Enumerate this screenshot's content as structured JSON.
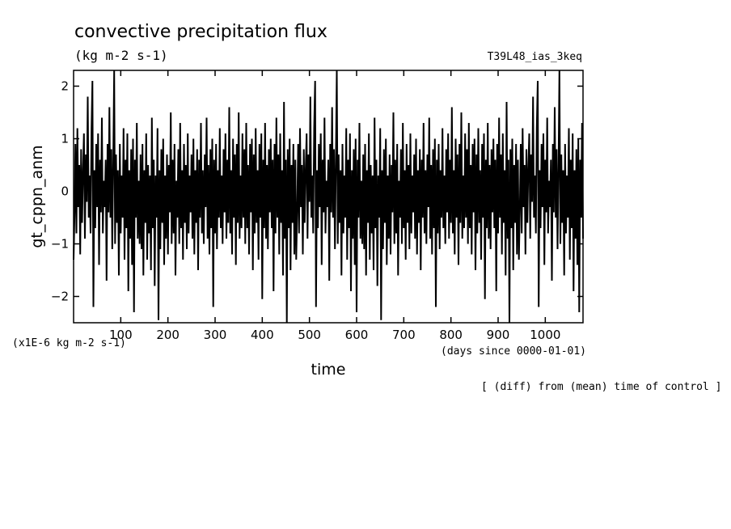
{
  "chart_data": {
    "type": "line",
    "title": "convective precipitation flux",
    "units": "(kg m-2 s-1)",
    "run_name": "T39L48_ias_3keq",
    "xlabel": "time",
    "x_unit_note": "(days since 0000-01-01)",
    "ylabel": "gt_cppn_anm",
    "y_scale_note": "(x1E-6 kg m-2 s-1)",
    "footnote": "[ (diff) from (mean) time of control ]",
    "xlim": [
      0,
      1080
    ],
    "ylim": [
      -2.5,
      2.3
    ],
    "x_ticks": [
      "100",
      "200",
      "300",
      "400",
      "500",
      "600",
      "700",
      "800",
      "900",
      "1000"
    ],
    "y_ticks": [
      "2",
      "1",
      "0",
      "−1",
      "−2"
    ],
    "grid": false,
    "legend": "none",
    "line_color": "#000000",
    "sample_interval_days": 2,
    "series": [
      {
        "values": [
          -1.3,
          -0.4,
          0.9,
          -0.8,
          1.2,
          -0.3,
          0.5,
          -1.2,
          0.8,
          -0.6,
          0.4,
          1.1,
          -0.9,
          0.7,
          -0.2,
          1.8,
          -0.5,
          0.3,
          -0.8,
          1.2,
          2.1,
          -2.2,
          0.4,
          -0.7,
          0.9,
          -0.3,
          1.1,
          -1.4,
          0.6,
          -0.4,
          1.4,
          -0.8,
          0.2,
          -0.3,
          0.6,
          -1.7,
          0.9,
          -0.4,
          1.6,
          -0.5,
          0.8,
          -1.1,
          0.5,
          2.3,
          -1.0,
          0.7,
          -0.6,
          0.4,
          -1.6,
          0.9,
          -0.8,
          0.3,
          -0.5,
          1.2,
          -1.3,
          0.6,
          -0.7,
          1.1,
          -1.9,
          0.4,
          -0.9,
          0.8,
          -1.4,
          1.0,
          -2.3,
          0.6,
          -0.5,
          1.3,
          -0.9,
          0.2,
          -1.0,
          0.7,
          -1.1,
          0.9,
          -1.6,
          0.4,
          -0.6,
          1.1,
          -1.3,
          0.5,
          -0.8,
          0.3,
          -1.5,
          1.4,
          -0.7,
          0.6,
          -1.8,
          0.3,
          -0.5,
          1.2,
          -2.45,
          0.4,
          -1.1,
          0.8,
          -0.6,
          1.0,
          -1.4,
          0.3,
          -0.9,
          0.7,
          -1.2,
          0.5,
          -0.4,
          1.5,
          -1.0,
          0.6,
          -0.8,
          0.9,
          -1.6,
          0.2,
          -0.5,
          0.8,
          -1.0,
          1.3,
          -0.7,
          0.4,
          -1.3,
          0.9,
          -0.6,
          0.5,
          -1.1,
          1.1,
          -0.8,
          0.3,
          -0.4,
          0.7,
          -0.9,
          1.0,
          -1.2,
          0.4,
          -0.6,
          0.8,
          -1.5,
          0.6,
          -0.5,
          1.3,
          -0.8,
          0.4,
          -1.0,
          0.7,
          -0.3,
          1.4,
          -0.9,
          0.5,
          -1.2,
          0.8,
          -0.7,
          1.0,
          -2.2,
          0.6,
          -0.8,
          0.9,
          -1.1,
          0.4,
          -0.5,
          1.2,
          -0.7,
          0.3,
          -1.0,
          0.8,
          -0.4,
          1.1,
          -0.9,
          0.6,
          -0.6,
          1.6,
          -0.8,
          0.4,
          -1.2,
          1.0,
          -0.5,
          0.7,
          -1.4,
          0.9,
          -0.6,
          1.5,
          -0.9,
          0.3,
          -0.7,
          1.1,
          -0.5,
          0.8,
          -1.0,
          1.3,
          -0.7,
          0.5,
          -1.2,
          0.9,
          -0.4,
          1.0,
          -1.5,
          0.7,
          -0.8,
          1.2,
          -0.6,
          0.4,
          -1.3,
          0.9,
          -0.5,
          1.1,
          -2.05,
          0.6,
          -0.7,
          1.3,
          -0.9,
          0.5,
          -1.1,
          0.8,
          -0.4,
          1.0,
          -0.7,
          0.6,
          -1.9,
          0.9,
          -0.8,
          1.4,
          -0.5,
          0.7,
          -1.2,
          1.1,
          -0.6,
          0.4,
          -1.6,
          1.7,
          -0.9,
          0.6,
          -2.5,
          0.8,
          -0.7,
          1.0,
          -1.5,
          0.5,
          -0.6,
          0.9,
          -1.2,
          0.6
        ]
      }
    ]
  }
}
